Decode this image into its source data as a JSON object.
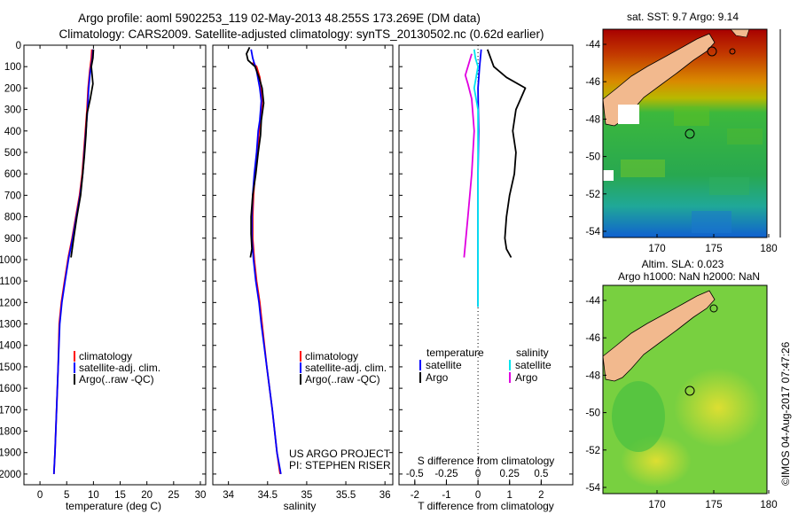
{
  "header": {
    "title_line1": "Argo profile: aoml 5902253_119 02-May-2013 48.255S 173.269E (DM data)",
    "title_line2": "Climatology: CARS2009. Satellite-adjusted climatology: synTS_20130502.nc (0.62d earlier)"
  },
  "colors": {
    "climatology": "#ff0000",
    "satellite": "#0000ff",
    "argo": "#000000",
    "sat_salinity": "#00e5ee",
    "argo_salinity": "#e000e0"
  },
  "chart_data": [
    {
      "type": "line",
      "xlabel": "temperature (deg C)",
      "ylabel": "",
      "xlim": [
        -3,
        31
      ],
      "ylim": [
        2050,
        0
      ],
      "x_ticks": [
        0,
        5,
        10,
        15,
        20,
        25,
        30
      ],
      "y_ticks": [
        0,
        100,
        200,
        300,
        400,
        500,
        600,
        700,
        800,
        900,
        1000,
        1100,
        1200,
        1300,
        1400,
        1500,
        1600,
        1700,
        1800,
        1900,
        2000
      ],
      "legend": [
        "climatology",
        "satellite-adj. clim.",
        "Argo(..raw -QC)"
      ],
      "series": [
        {
          "name": "climatology",
          "color": "#ff0000",
          "points": [
            [
              9.7,
              20
            ],
            [
              9.6,
              60
            ],
            [
              9.3,
              120
            ],
            [
              9.0,
              200
            ],
            [
              8.8,
              300
            ],
            [
              8.5,
              400
            ],
            [
              8.2,
              500
            ],
            [
              7.9,
              600
            ],
            [
              7.4,
              700
            ],
            [
              6.7,
              800
            ],
            [
              6.0,
              900
            ],
            [
              5.3,
              990
            ],
            [
              4.6,
              1100
            ],
            [
              4.0,
              1200
            ],
            [
              3.6,
              1300
            ],
            [
              3.4,
              1500
            ],
            [
              3.1,
              1700
            ],
            [
              2.8,
              1900
            ],
            [
              2.6,
              2000
            ]
          ]
        },
        {
          "name": "satellite-adj. clim.",
          "color": "#0000ff",
          "points": [
            [
              9.9,
              20
            ],
            [
              9.8,
              60
            ],
            [
              9.4,
              120
            ],
            [
              9.1,
              200
            ],
            [
              8.9,
              300
            ],
            [
              8.6,
              400
            ],
            [
              8.3,
              500
            ],
            [
              8.0,
              600
            ],
            [
              7.5,
              700
            ],
            [
              6.8,
              800
            ],
            [
              6.1,
              900
            ],
            [
              5.4,
              990
            ],
            [
              4.7,
              1100
            ],
            [
              4.1,
              1200
            ],
            [
              3.7,
              1300
            ],
            [
              3.4,
              1500
            ],
            [
              3.1,
              1700
            ],
            [
              2.8,
              1900
            ],
            [
              2.6,
              2000
            ]
          ]
        },
        {
          "name": "Argo(..raw -QC)",
          "color": "#000000",
          "points": [
            [
              10.0,
              20
            ],
            [
              9.9,
              60
            ],
            [
              9.6,
              100
            ],
            [
              9.9,
              180
            ],
            [
              9.4,
              250
            ],
            [
              8.8,
              320
            ],
            [
              8.6,
              420
            ],
            [
              8.3,
              520
            ],
            [
              8.0,
              600
            ],
            [
              7.6,
              700
            ],
            [
              6.9,
              800
            ],
            [
              6.3,
              900
            ],
            [
              5.8,
              990
            ]
          ]
        }
      ]
    },
    {
      "type": "line",
      "xlabel": "salinity",
      "ylabel": "",
      "xlim": [
        33.8,
        36.1
      ],
      "ylim": [
        2050,
        0
      ],
      "x_ticks": [
        34,
        34.5,
        35,
        35.5,
        36
      ],
      "legend": [
        "climatology",
        "satellite-adj. clim.",
        "Argo(..raw -QC)"
      ],
      "annotations": [
        "US ARGO PROJECT",
        "PI: STEPHEN RISER"
      ],
      "series": [
        {
          "name": "climatology",
          "color": "#ff0000",
          "points": [
            [
              34.31,
              80
            ],
            [
              34.36,
              100
            ],
            [
              34.4,
              150
            ],
            [
              34.42,
              200
            ],
            [
              34.43,
              260
            ],
            [
              34.41,
              350
            ],
            [
              34.39,
              400
            ],
            [
              34.37,
              500
            ],
            [
              34.34,
              600
            ],
            [
              34.32,
              700
            ],
            [
              34.31,
              800
            ],
            [
              34.31,
              900
            ],
            [
              34.33,
              1000
            ],
            [
              34.36,
              1100
            ],
            [
              34.4,
              1200
            ],
            [
              34.43,
              1300
            ],
            [
              34.49,
              1500
            ],
            [
              34.56,
              1700
            ],
            [
              34.62,
              1900
            ],
            [
              34.66,
              2000
            ]
          ]
        },
        {
          "name": "satellite-adj. clim.",
          "color": "#0000ff",
          "points": [
            [
              34.29,
              20
            ],
            [
              34.31,
              60
            ],
            [
              34.36,
              120
            ],
            [
              34.4,
              200
            ],
            [
              34.42,
              260
            ],
            [
              34.4,
              350
            ],
            [
              34.38,
              400
            ],
            [
              34.36,
              500
            ],
            [
              34.33,
              600
            ],
            [
              34.31,
              700
            ],
            [
              34.3,
              800
            ],
            [
              34.3,
              900
            ],
            [
              34.32,
              1000
            ],
            [
              34.35,
              1100
            ],
            [
              34.39,
              1200
            ],
            [
              34.42,
              1300
            ],
            [
              34.49,
              1500
            ],
            [
              34.56,
              1700
            ],
            [
              34.62,
              1900
            ],
            [
              34.67,
              2000
            ]
          ]
        },
        {
          "name": "Argo(..raw -QC)",
          "color": "#000000",
          "points": [
            [
              34.27,
              10
            ],
            [
              34.23,
              40
            ],
            [
              34.25,
              70
            ],
            [
              34.34,
              100
            ],
            [
              34.39,
              150
            ],
            [
              34.43,
              200
            ],
            [
              34.45,
              270
            ],
            [
              34.42,
              350
            ],
            [
              34.41,
              420
            ],
            [
              34.38,
              500
            ],
            [
              34.35,
              600
            ],
            [
              34.31,
              700
            ],
            [
              34.29,
              800
            ],
            [
              34.29,
              880
            ],
            [
              34.3,
              950
            ],
            [
              34.28,
              990
            ]
          ]
        }
      ]
    },
    {
      "type": "line",
      "xlabel_bottom": "T difference from climatology",
      "xlabel_top": "S difference from climatology",
      "xlim": [
        -2.5,
        3.0
      ],
      "ylim": [
        2050,
        0
      ],
      "x_ticks": [
        -2,
        -1,
        0,
        1,
        2
      ],
      "x_ticks_labels": [
        "-2",
        "-1",
        "0",
        "1",
        "2"
      ],
      "s_ticks": [
        -0.5,
        -0.25,
        0,
        0.25,
        0.5
      ],
      "s_tick_labels": [
        "-0.5",
        "-0.25",
        "0",
        "0.25",
        "0.5"
      ],
      "s_scale_factor": 4,
      "legend_headers": [
        "temperature",
        "salinity"
      ],
      "legend": [
        "satellite",
        "Argo",
        "satellite",
        "Argo"
      ],
      "series": [
        {
          "name": "satellite",
          "quantity": "temperature",
          "color": "#0000ff",
          "points": [
            [
              0.1,
              20
            ],
            [
              0.05,
              100
            ],
            [
              0.0,
              200
            ],
            [
              0.02,
              400
            ],
            [
              0.0,
              600
            ],
            [
              0.0,
              800
            ],
            [
              0.0,
              1000
            ],
            [
              0.0,
              1200
            ],
            [
              0.0,
              1220
            ]
          ]
        },
        {
          "name": "Argo",
          "quantity": "temperature",
          "color": "#000000",
          "points": [
            [
              0.3,
              20
            ],
            [
              0.5,
              100
            ],
            [
              0.9,
              150
            ],
            [
              1.5,
              200
            ],
            [
              1.2,
              300
            ],
            [
              1.1,
              400
            ],
            [
              1.2,
              500
            ],
            [
              1.15,
              600
            ],
            [
              1.0,
              700
            ],
            [
              0.9,
              800
            ],
            [
              0.85,
              900
            ],
            [
              0.9,
              950
            ],
            [
              1.05,
              990
            ]
          ]
        },
        {
          "name": "satellite",
          "quantity": "salinity",
          "color": "#00e5ee",
          "points": [
            [
              -0.03,
              20
            ],
            [
              -0.02,
              60
            ],
            [
              0.0,
              100
            ],
            [
              -0.03,
              200
            ],
            [
              0.0,
              300
            ],
            [
              0.0,
              600
            ],
            [
              0.0,
              1000
            ],
            [
              0.0,
              1220
            ]
          ]
        },
        {
          "name": "Argo",
          "quantity": "salinity",
          "color": "#e000e0",
          "points": [
            [
              -0.05,
              40
            ],
            [
              -0.08,
              100
            ],
            [
              -0.1,
              140
            ],
            [
              -0.08,
              180
            ],
            [
              -0.05,
              250
            ],
            [
              -0.03,
              400
            ],
            [
              -0.05,
              600
            ],
            [
              -0.08,
              800
            ],
            [
              -0.11,
              990
            ]
          ]
        }
      ]
    }
  ],
  "maps": {
    "sst": {
      "title": "sat. SST: 9.7 Argo: 9.14",
      "lat_ticks": [
        "-44",
        "-46",
        "-48",
        "-50",
        "-52",
        "-54"
      ],
      "lon_ticks": [
        "170",
        "175",
        "180"
      ]
    },
    "sla": {
      "title_line1": "Altim. SLA: 0.023",
      "title_line2": "Argo h1000: NaN h2000: NaN",
      "lat_ticks": [
        "-44",
        "-46",
        "-48",
        "-50",
        "-52",
        "-54"
      ],
      "lon_ticks": [
        "170",
        "175",
        "180"
      ]
    }
  },
  "footer_stamp": "©IMOS 04-Aug-2017 07:47:26"
}
